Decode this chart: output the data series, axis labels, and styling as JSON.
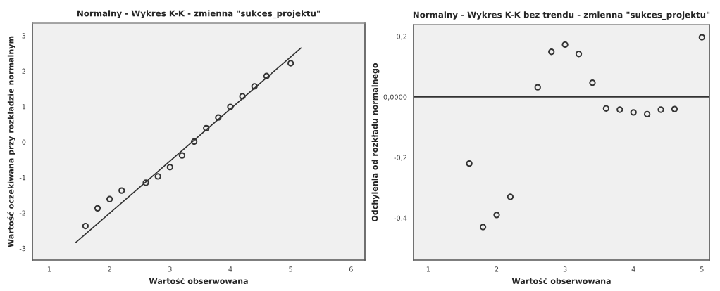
{
  "chart_data": [
    {
      "type": "scatter",
      "title": "Normalny - Wykres K-K - zmienna \"sukces_projektu\"",
      "xlabel": "Wartość obserwowana",
      "ylabel": "Wartość oczekiwana przy rozkładzie normalnym",
      "series": [
        {
          "color": "#333333",
          "marker": "circle",
          "x": [
            1.6,
            1.8,
            2.0,
            2.2,
            2.6,
            2.8,
            3.0,
            3.2,
            3.4,
            3.6,
            3.8,
            4.0,
            4.2,
            4.4,
            4.6,
            5.0
          ],
          "values": [
            -2.37,
            -1.87,
            -1.61,
            -1.37,
            -1.15,
            -0.97,
            -0.71,
            -0.38,
            0.01,
            0.39,
            0.69,
            0.99,
            1.29,
            1.57,
            1.86,
            2.22
          ]
        },
        {
          "type": "line",
          "color": "#333333",
          "line_style": "solid",
          "x": [
            1.44,
            5.17
          ],
          "values": [
            -2.83,
            2.65
          ]
        }
      ],
      "xlim": [
        0.72,
        6.23
      ],
      "ylim": [
        -3.33,
        3.35
      ],
      "xticks": [
        1,
        2,
        3,
        4,
        5,
        6
      ],
      "yticks": [
        -3,
        -2,
        -1,
        0,
        1,
        2,
        3
      ],
      "grid": false,
      "legend": false
    },
    {
      "type": "scatter",
      "title": "Normalny - Wykres K-K bez trendu - zmienna \"sukces_projektu\"",
      "xlabel": "Wartość obserwowana",
      "ylabel": "Odchylenia od rozkładu normalnego",
      "series": [
        {
          "color": "#333333",
          "marker": "circle",
          "x": [
            1.6,
            1.8,
            2.0,
            2.2,
            2.6,
            2.8,
            3.0,
            3.2,
            3.4,
            3.6,
            3.8,
            4.0,
            4.2,
            4.4,
            4.6,
            5.0
          ],
          "values": [
            -0.22,
            -0.43,
            -0.39,
            -0.33,
            0.032,
            0.149,
            0.173,
            0.142,
            0.047,
            -0.038,
            -0.042,
            -0.051,
            -0.057,
            -0.042,
            -0.04,
            0.197
          ]
        }
      ],
      "ref_lines": [
        {
          "axis": "y",
          "value": 0,
          "color": "#333333",
          "line_style": "solid"
        }
      ],
      "xlim": [
        0.785,
        5.11
      ],
      "ylim": [
        -0.539,
        0.239
      ],
      "xticks": [
        1,
        2,
        3,
        4,
        5
      ],
      "yticks": [
        {
          "value": -0.4,
          "label": "-0,4"
        },
        {
          "value": -0.2,
          "label": "-0,2"
        },
        {
          "value": 0,
          "label": "0,0000"
        },
        {
          "value": 0.2,
          "label": "0,2"
        }
      ],
      "grid": false,
      "legend": false
    }
  ]
}
